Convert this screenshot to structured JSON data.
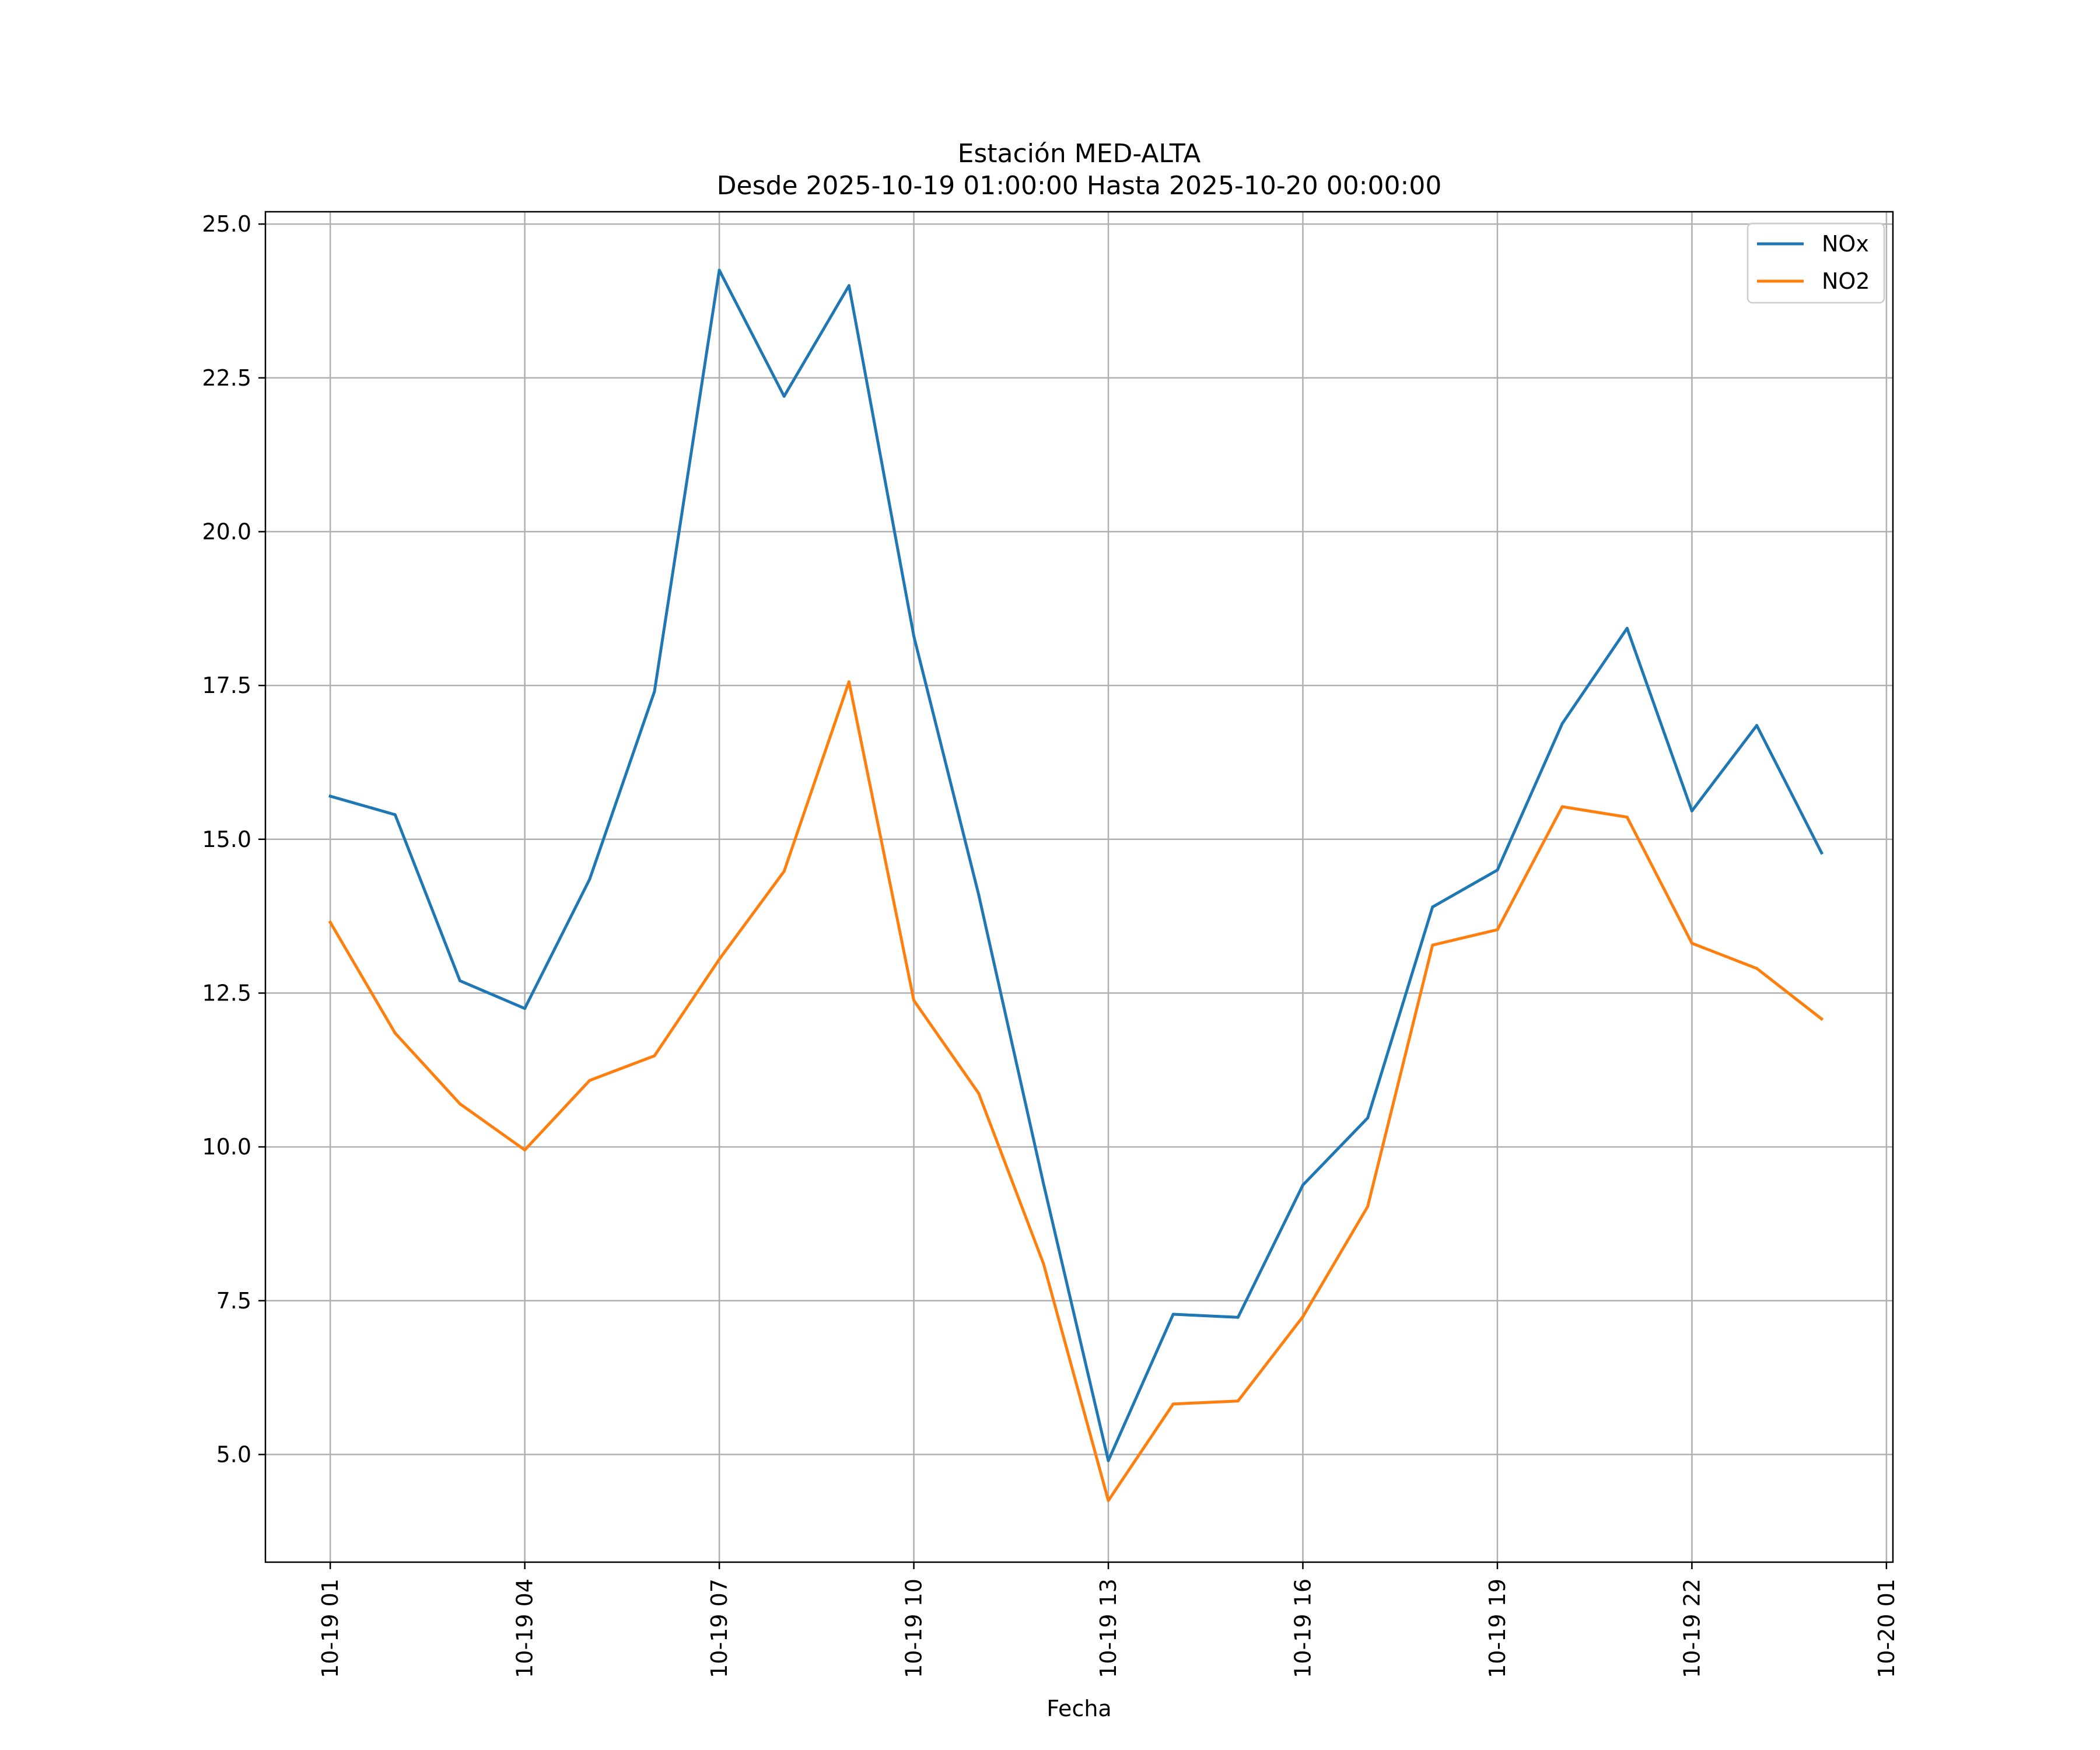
{
  "chart_data": {
    "type": "line",
    "title": "Estación MED-ALTA",
    "subtitle": "Desde 2025-10-19 01:00:00 Hasta 2025-10-20 00:00:00",
    "xlabel": "Fecha",
    "ylabel": "",
    "x": [
      "2025-10-19 01:00",
      "2025-10-19 02:00",
      "2025-10-19 03:00",
      "2025-10-19 04:00",
      "2025-10-19 05:00",
      "2025-10-19 06:00",
      "2025-10-19 07:00",
      "2025-10-19 08:00",
      "2025-10-19 09:00",
      "2025-10-19 10:00",
      "2025-10-19 11:00",
      "2025-10-19 12:00",
      "2025-10-19 13:00",
      "2025-10-19 14:00",
      "2025-10-19 15:00",
      "2025-10-19 16:00",
      "2025-10-19 17:00",
      "2025-10-19 18:00",
      "2025-10-19 19:00",
      "2025-10-19 20:00",
      "2025-10-19 21:00",
      "2025-10-19 22:00",
      "2025-10-19 23:00",
      "2025-10-20 00:00"
    ],
    "xlim": [
      "2025-10-19 00:00",
      "2025-10-20 01:06"
    ],
    "x_ticks": [
      "2025-10-19 01:00",
      "2025-10-19 04:00",
      "2025-10-19 07:00",
      "2025-10-19 10:00",
      "2025-10-19 13:00",
      "2025-10-19 16:00",
      "2025-10-19 19:00",
      "2025-10-19 22:00",
      "2025-10-20 01:00"
    ],
    "x_tick_labels": [
      "10-19 01",
      "10-19 04",
      "10-19 07",
      "10-19 10",
      "10-19 13",
      "10-19 16",
      "10-19 19",
      "10-19 22",
      "10-20 01"
    ],
    "x_tick_rotation": "vertical",
    "ylim": [
      3.25,
      25.2
    ],
    "y_ticks": [
      5.0,
      7.5,
      10.0,
      12.5,
      15.0,
      17.5,
      20.0,
      22.5,
      25.0
    ],
    "y_tick_labels": [
      "5.0",
      "7.5",
      "10.0",
      "12.5",
      "15.0",
      "17.5",
      "20.0",
      "22.5",
      "25.0"
    ],
    "grid": true,
    "legend_position": "top-right",
    "series": [
      {
        "name": "NOx",
        "color": "#1f77b4",
        "values": [
          15.7,
          15.4,
          12.7,
          12.25,
          14.35,
          17.4,
          24.25,
          22.2,
          24.0,
          18.3,
          14.1,
          9.4,
          4.9,
          7.28,
          7.23,
          9.38,
          10.47,
          13.9,
          14.5,
          16.88,
          18.43,
          15.46,
          16.85,
          14.78
        ]
      },
      {
        "name": "NO2",
        "color": "#ff7f0e",
        "values": [
          13.65,
          11.85,
          10.7,
          9.95,
          11.08,
          11.48,
          13.05,
          14.48,
          17.56,
          12.38,
          10.87,
          8.1,
          4.25,
          5.82,
          5.87,
          7.24,
          9.03,
          13.28,
          13.53,
          15.53,
          15.36,
          13.31,
          12.9,
          12.08
        ]
      }
    ]
  }
}
